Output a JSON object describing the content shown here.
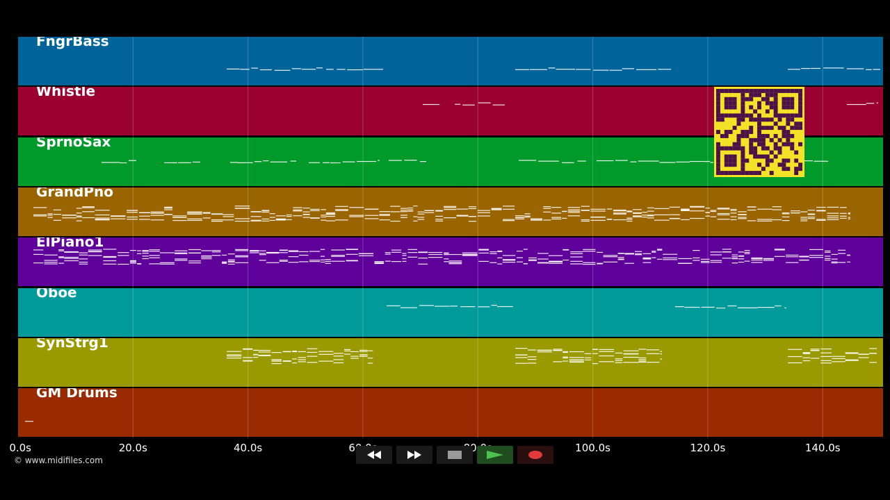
{
  "tracks": [
    {
      "name": "FngrBass",
      "color": "#00649a"
    },
    {
      "name": "Whistle",
      "color": "#9a0030"
    },
    {
      "name": "SprnoSax",
      "color": "#009a2a"
    },
    {
      "name": "GrandPno",
      "color": "#9a6400"
    },
    {
      "name": "ElPiano1",
      "color": "#60009a"
    },
    {
      "name": "Oboe",
      "color": "#009a9a"
    },
    {
      "name": "SynStrg1",
      "color": "#9a9a00"
    },
    {
      "name": "GM Drums",
      "color": "#9a2a00"
    }
  ],
  "axis": {
    "ticks": [
      "0.0s",
      "20.0s",
      "40.0s",
      "60.0s",
      "80.0s",
      "100.0s",
      "120.0s",
      "140.0s"
    ],
    "tick_values": [
      0,
      20,
      40,
      60,
      80,
      100,
      120,
      140
    ],
    "max_seconds": 150.5
  },
  "copyright": "© www.midifiles.com",
  "controls": {
    "rewind": "rewind-icon",
    "fast_forward": "fast-forward-icon",
    "stop": "stop-icon",
    "play": "play-icon",
    "record": "record-icon"
  },
  "qr_colors": {
    "bg": "#f2e228",
    "fg": "#4a1248"
  },
  "note_color": "#ffffff"
}
